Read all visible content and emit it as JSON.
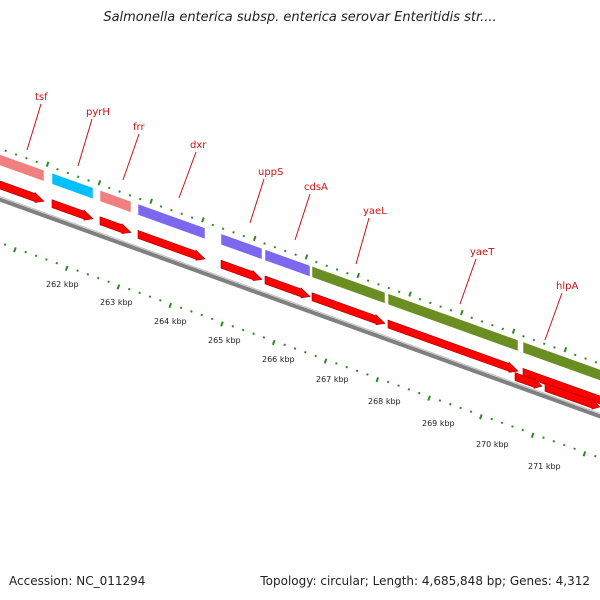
{
  "header": {
    "title": "Salmonella enterica subsp. enterica serovar Enteritidis str...."
  },
  "footer": {
    "accession": "Accession: NC_011294",
    "summary": "Topology: circular; Length: 4,685,848 bp; Genes: 4,312"
  },
  "genes": [
    {
      "name": "tsf",
      "color": "#f08080"
    },
    {
      "name": "pyrH",
      "color": "#00bfff"
    },
    {
      "name": "frr",
      "color": "#f08080"
    },
    {
      "name": "dxr",
      "color": "#7b68ee"
    },
    {
      "name": "uppS",
      "color": "#7b68ee"
    },
    {
      "name": "cdsA",
      "color": "#7b68ee"
    },
    {
      "name": "yaeL",
      "color": "#6b8e23"
    },
    {
      "name": "yaeT",
      "color": "#6b8e23"
    },
    {
      "name": "hlpA",
      "color": "#6b8e23"
    }
  ],
  "kbp_ticks": [
    "262 kbp",
    "263 kbp",
    "264 kbp",
    "265 kbp",
    "266 kbp",
    "267 kbp",
    "268 kbp",
    "269 kbp",
    "270 kbp",
    "271 kbp"
  ],
  "colors": {
    "cds_arrow": "#ff0000",
    "backbone": "#808080",
    "tick_mark": "#2e8b22",
    "label": "#d01010"
  }
}
